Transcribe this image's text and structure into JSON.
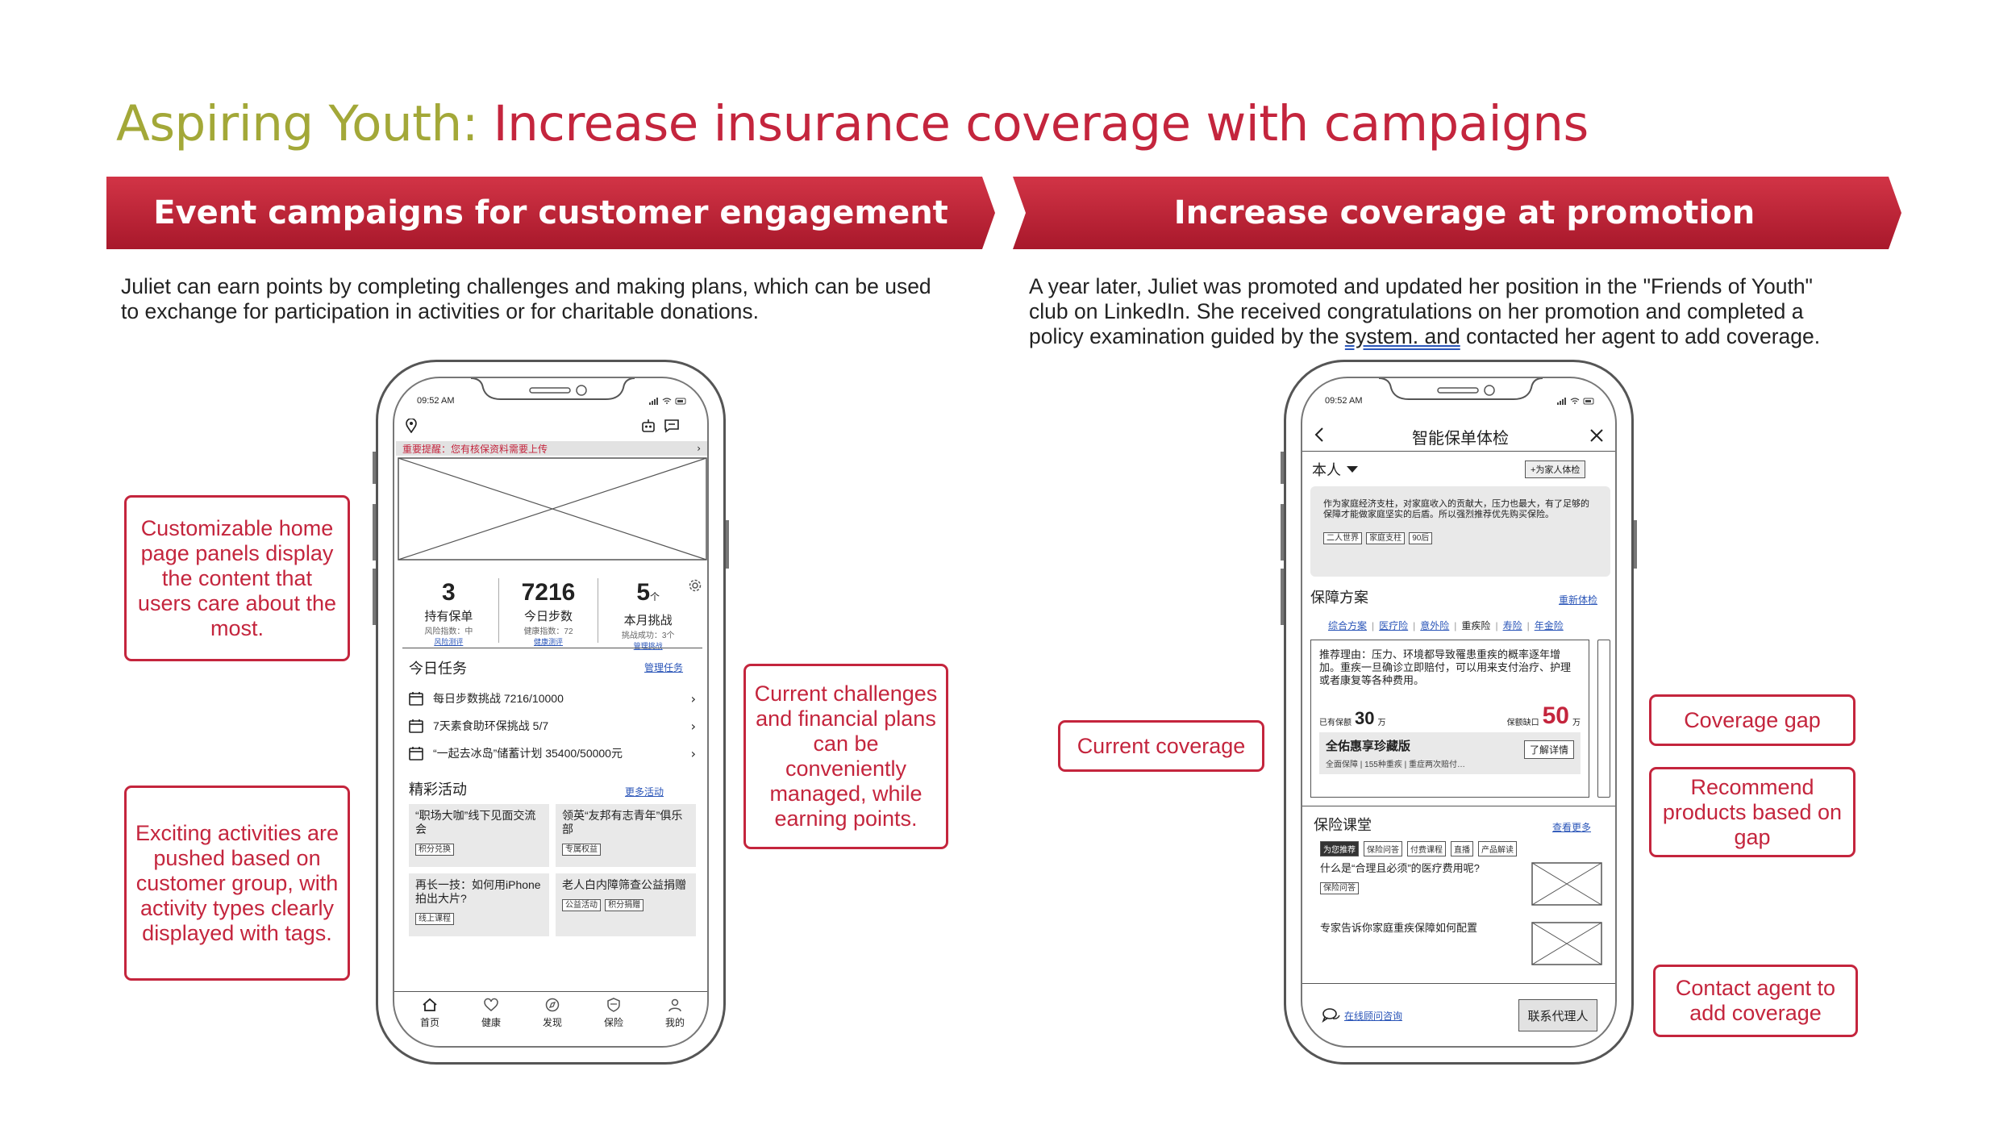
{
  "title": {
    "prefix": "Aspiring Youth:",
    "main": "Increase insurance coverage with campaigns"
  },
  "left": {
    "banner": "Event campaigns for customer engagement",
    "desc_line1": "Juliet can earn points by completing challenges and making plans, which can be used",
    "desc_line2": "to exchange for participation in activities or for charitable donations.",
    "callouts": [
      "Customizable home page panels display the content that users care about the most.",
      "Exciting activities are pushed based on customer group, with activity types clearly displayed with tags.",
      "Current challenges and financial plans can be conveniently managed, while earning points."
    ],
    "phone": {
      "time": "09:52 AM",
      "notice": "重要提醒：您有核保资料需要上传",
      "stats": [
        {
          "value": "3",
          "unit": "",
          "label": "持有保单",
          "sub": "风险指数：中",
          "link": "风险测评"
        },
        {
          "value": "7216",
          "unit": "",
          "label": "今日步数",
          "sub": "健康指数：72",
          "link": "健康测评"
        },
        {
          "value": "5",
          "unit": "个",
          "label": "本月挑战",
          "sub": "挑战成功：3个",
          "link": "管理挑战"
        }
      ],
      "tasks_title": "今日任务",
      "tasks_link": "管理任务",
      "tasks": [
        "每日步数挑战 7216/10000",
        "7天素食助环保挑战 5/7",
        "“一起去冰岛”储蓄计划 35400/50000元"
      ],
      "activities_title": "精彩活动",
      "activities_link": "更多活动",
      "activities": [
        {
          "title": "“职场大咖”线下见面交流会",
          "tags": [
            "积分兑换"
          ]
        },
        {
          "title": "领英“友邦有志青年”俱乐部",
          "tags": [
            "专属权益"
          ]
        },
        {
          "title": "再长一技：如何用iPhone拍出大片?",
          "tags": [
            "线上课程"
          ]
        },
        {
          "title": "老人白内障筛查公益捐赠",
          "tags": [
            "公益活动",
            "积分捐赠"
          ]
        }
      ],
      "nav": [
        "首页",
        "健康",
        "发现",
        "保险",
        "我的"
      ]
    }
  },
  "right": {
    "banner": "Increase coverage at promotion",
    "desc_line1": "A year later, Juliet was promoted and updated her position in the \"Friends of Youth\"",
    "desc_line2": "club on LinkedIn. She received congratulations on her promotion and completed a",
    "desc_line3a": "policy examination guided by the ",
    "desc_line3b": "system. and",
    "desc_line3c": " contacted her agent to add coverage.",
    "callouts": {
      "current": "Current coverage",
      "gap": "Coverage gap",
      "recommend": "Recommend products based on gap",
      "contact": "Contact agent to add coverage"
    },
    "phone": {
      "time": "09:52 AM",
      "header_title": "智能保单体检",
      "person": "本人",
      "family_btn": "+为家人体检",
      "intro": "作为家庭经济支柱，对家庭收入的贡献大，压力也最大，有了足够的保障才能做家庭坚实的后盾。所以强烈推荐优先购买保险。",
      "intro_tags": [
        "二人世界",
        "家庭支柱",
        "90后"
      ],
      "plan_title": "保障方案",
      "plan_link": "重新体检",
      "plan_tabs": [
        "综合方案",
        "医疗险",
        "意外险",
        "重疾险",
        "寿险",
        "年金险"
      ],
      "reason": "推荐理由：压力、环境都导致罹患重疾的概率逐年增加。重疾一旦确诊立即赔付，可以用来支付治疗、护理或者康复等各种费用。",
      "has_label": "已有保额",
      "has_value": "30",
      "wan": "万",
      "gap_label": "保额缺口",
      "gap_value": "50",
      "product_name": "全佑惠享珍藏版",
      "product_desc": "全面保障 | 155种重疾 | 重症两次赔付…",
      "product_btn": "了解详情",
      "class_title": "保险课堂",
      "class_link": "查看更多",
      "class_tabs": [
        "为您推荐",
        "保险问答",
        "付费课程",
        "直播",
        "产品解读"
      ],
      "articles": [
        {
          "title": "什么是“合理且必须”的医疗费用呢?",
          "tag": "保险问答"
        },
        {
          "title": "专家告诉你家庭重疾保障如何配置",
          "tag": ""
        }
      ],
      "online": "在线顾问咨询",
      "contact_btn": "联系代理人"
    }
  }
}
